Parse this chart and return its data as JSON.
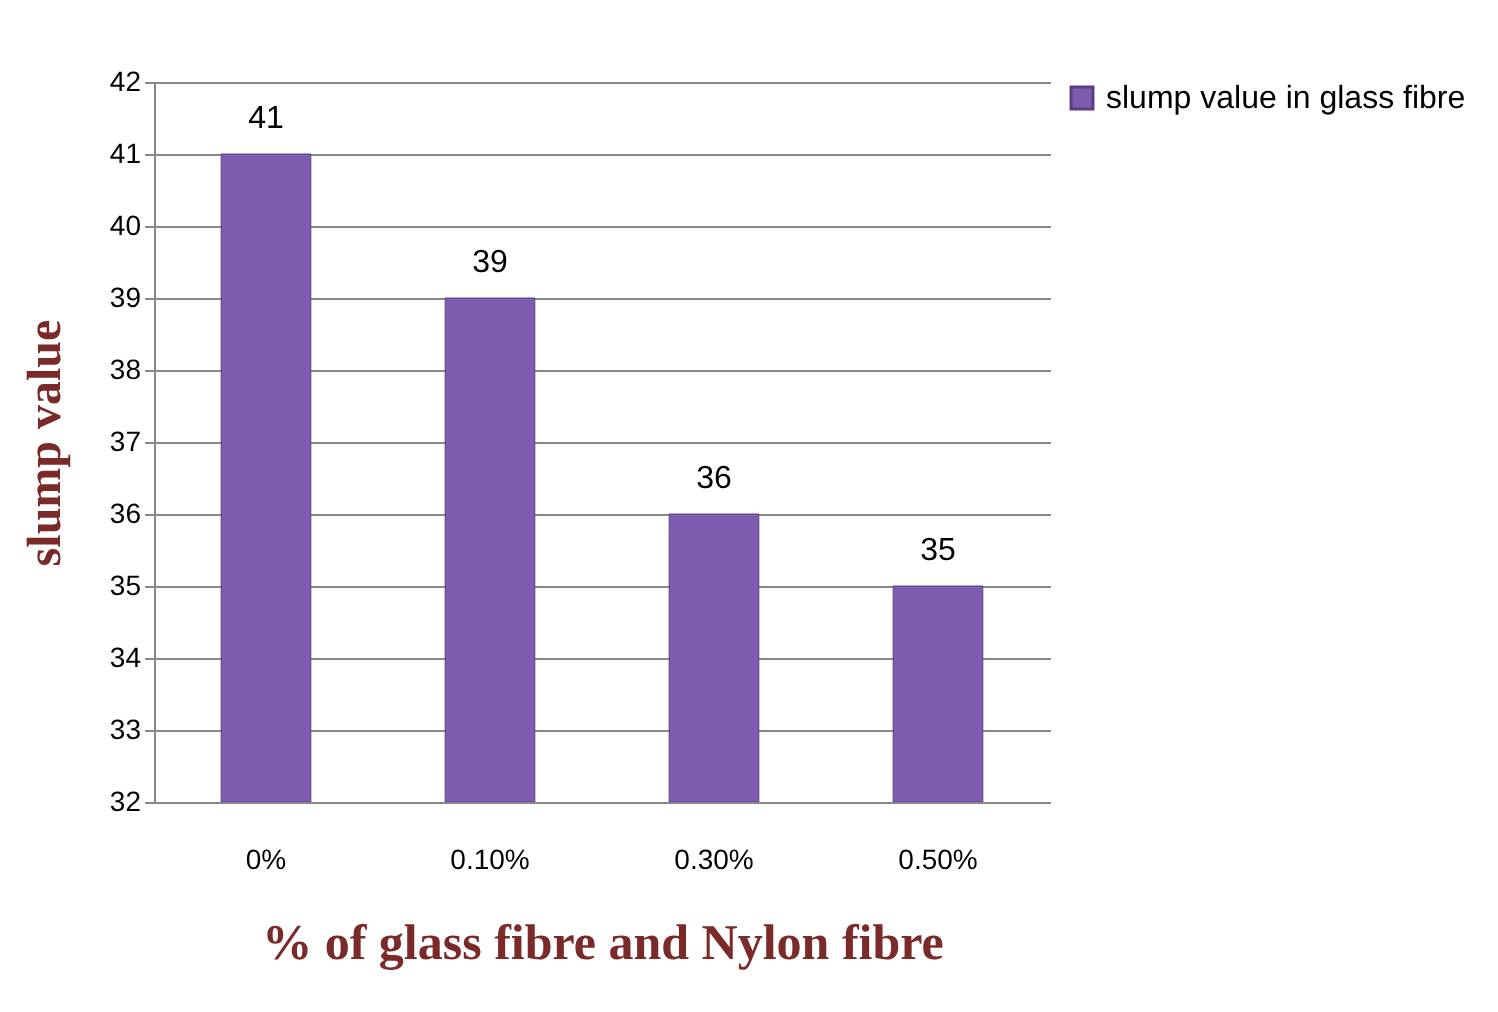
{
  "chart_data": {
    "type": "bar",
    "xlabel": "% of glass fibre  and Nylon fibre",
    "ylabel": "slump value",
    "categories": [
      "0%",
      "0.10%",
      "0.30%",
      "0.50%"
    ],
    "series": [
      {
        "name": "slump value in glass fibre",
        "color": "#7e5cb0",
        "values": [
          41,
          39,
          36,
          35
        ]
      }
    ],
    "ylim": [
      32,
      42
    ],
    "yticks": [
      32,
      33,
      34,
      35,
      36,
      37,
      38,
      39,
      40,
      41,
      42
    ],
    "grid": "y",
    "legend": "right",
    "data_labels": true
  }
}
